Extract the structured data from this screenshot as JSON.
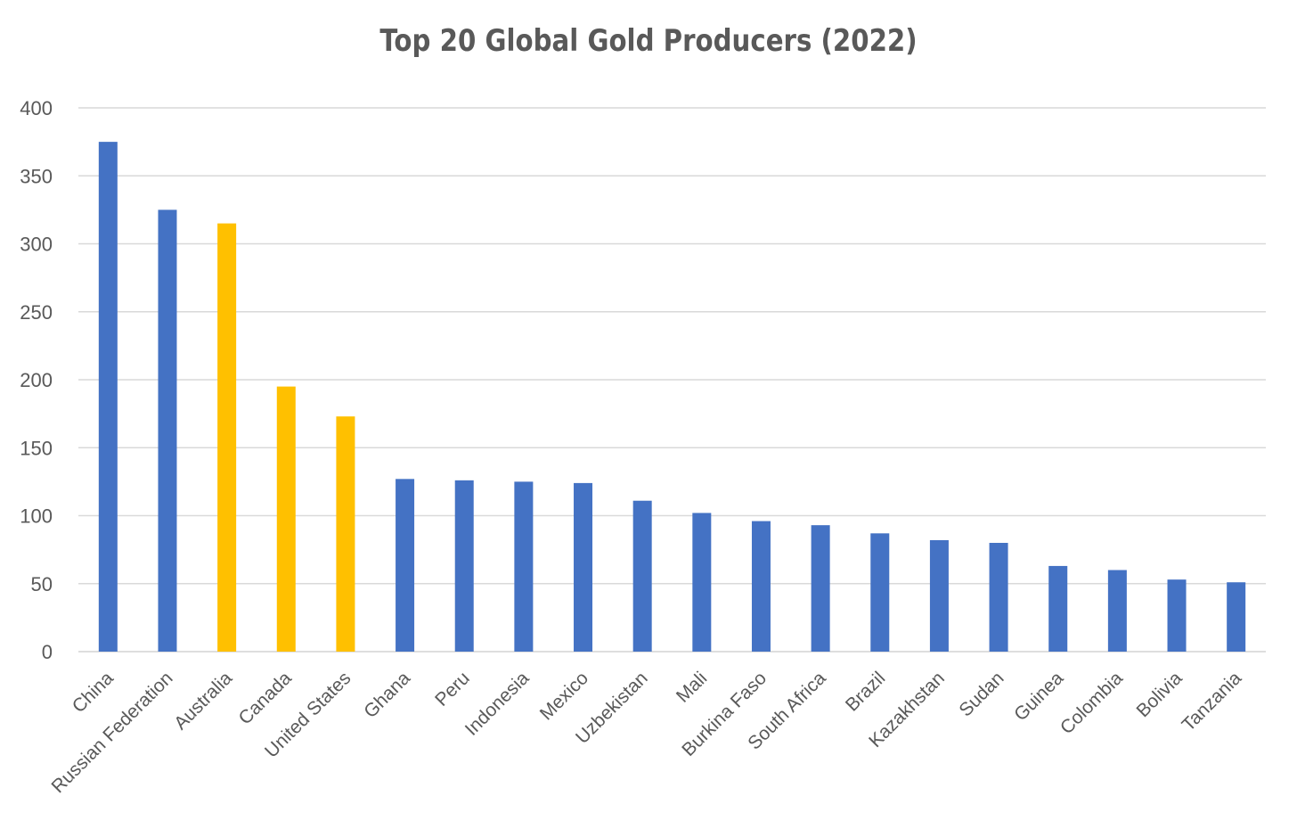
{
  "chart_data": {
    "type": "bar",
    "title": "Top 20 Global Gold Producers (2022)",
    "xlabel": "",
    "ylabel": "",
    "ylim": [
      0,
      400
    ],
    "yticks": [
      0,
      50,
      100,
      150,
      200,
      250,
      300,
      350,
      400
    ],
    "grid": true,
    "legend": "none",
    "categories": [
      "China",
      "Russian Federation",
      "Australia",
      "Canada",
      "United States",
      "Ghana",
      "Peru",
      "Indonesia",
      "Mexico",
      "Uzbekistan",
      "Mali",
      "Burkina Faso",
      "South Africa",
      "Brazil",
      "Kazakhstan",
      "Sudan",
      "Guinea",
      "Colombia",
      "Bolivia",
      "Tanzania"
    ],
    "values": [
      375,
      325,
      315,
      195,
      173,
      127,
      126,
      125,
      124,
      111,
      102,
      96,
      93,
      87,
      82,
      80,
      63,
      60,
      53,
      51
    ],
    "bar_colors": [
      "#4472C4",
      "#4472C4",
      "#FFC000",
      "#FFC000",
      "#FFC000",
      "#4472C4",
      "#4472C4",
      "#4472C4",
      "#4472C4",
      "#4472C4",
      "#4472C4",
      "#4472C4",
      "#4472C4",
      "#4472C4",
      "#4472C4",
      "#4472C4",
      "#4472C4",
      "#4472C4",
      "#4472C4",
      "#4472C4"
    ],
    "gridline_color": "#D9D9D9",
    "text_color": "#595959"
  }
}
